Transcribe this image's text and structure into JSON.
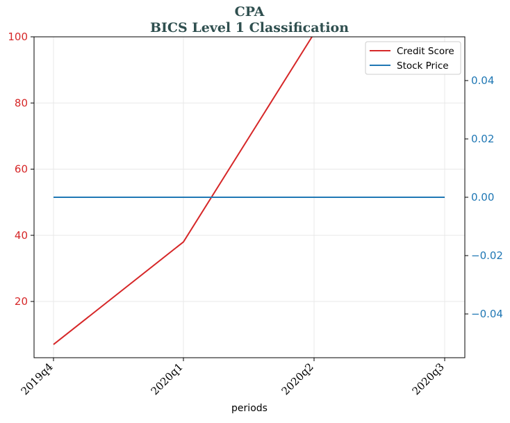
{
  "colors": {
    "credit": "#d62728",
    "stock": "#1f77b4",
    "title": "#2f4f4f",
    "grid": "#e8e8e8",
    "axis": "#000000"
  },
  "chart_data": {
    "type": "line",
    "title": "CPA",
    "subtitle": "BICS Level 1 Classification",
    "xlabel": "periods",
    "categories": [
      "2019q4",
      "2020q1",
      "2020q2",
      "2020q3"
    ],
    "grid": true,
    "legend_position": "top-right",
    "y_left": {
      "range": [
        3,
        100
      ],
      "ticks": [
        20,
        40,
        60,
        80,
        100
      ],
      "tick_labels": [
        "20",
        "40",
        "60",
        "80",
        "100"
      ]
    },
    "y_right": {
      "range": [
        -0.055,
        0.055
      ],
      "ticks": [
        -0.04,
        -0.02,
        0.0,
        0.02,
        0.04
      ],
      "tick_labels": [
        "−0.04",
        "−0.02",
        "0.00",
        "0.02",
        "0.04"
      ]
    },
    "series": [
      {
        "name": "Credit Score",
        "axis": "left",
        "values": [
          7,
          38,
          101,
          null
        ]
      },
      {
        "name": "Stock Price",
        "axis": "right",
        "values": [
          0,
          0,
          0,
          0
        ]
      }
    ]
  }
}
